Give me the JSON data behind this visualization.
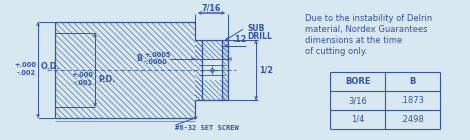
{
  "bg_color": "#d8e8f0",
  "line_color": "#3355aa",
  "text_color": "#3355aa",
  "note_lines": [
    "Due to the instability of Delrin",
    "material, Nordex Guarantees",
    "dimensions at the time",
    "of cutting only."
  ],
  "table_headers": [
    "BORE",
    "B"
  ],
  "table_rows": [
    [
      "3/16",
      ".1873"
    ],
    [
      "1/4",
      ".2498"
    ]
  ],
  "dim_od": [
    "+.000",
    "-.002"
  ],
  "dim_od_label": "O.D.",
  "dim_pd": [
    "+.000",
    "-.001"
  ],
  "dim_pd_label": "P.D.",
  "dim_b_label": "B",
  "dim_b_plus": "+.0005",
  "dim_b_minus": "-.0000",
  "dim_716": "7/16",
  "dim_12": ".12",
  "dim_half": "1/2",
  "sub_drill": [
    "SUB",
    "DRILL"
  ],
  "set_screw": "#6-32 SET SCREW"
}
